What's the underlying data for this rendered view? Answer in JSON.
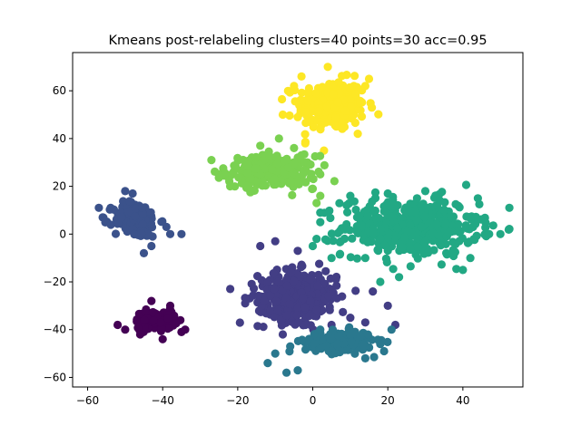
{
  "chart_data": {
    "type": "scatter",
    "title": "Kmeans post-relabeling clusters=40 points=30 acc=0.95",
    "xlabel": "",
    "ylabel": "",
    "xlim": [
      -64,
      56
    ],
    "ylim": [
      -64,
      76
    ],
    "xticks": [
      -60,
      -40,
      -20,
      0,
      20,
      40
    ],
    "yticks": [
      -60,
      -40,
      -20,
      0,
      20,
      40,
      60
    ],
    "grid": false,
    "colormap": "viridis",
    "marker_color_scale": "cluster label (viridis)",
    "series": [
      {
        "color": "#fde725",
        "center": [
          5,
          54
        ],
        "spread": [
          6,
          7
        ],
        "count": 260,
        "points": [
          [
            -4,
            49
          ],
          [
            -2,
            51
          ],
          [
            -5,
            62
          ],
          [
            14,
            62
          ],
          [
            15,
            65
          ],
          [
            3,
            35
          ],
          [
            -3,
            66
          ],
          [
            4,
            70
          ],
          [
            12,
            42
          ],
          [
            -8,
            50
          ],
          [
            -2,
            38
          ]
        ]
      },
      {
        "color": "#7ad151",
        "center": [
          -11,
          26
        ],
        "spread": [
          8,
          4.5
        ],
        "count": 240,
        "points": [
          [
            -27,
            31
          ],
          [
            -25,
            25
          ],
          [
            -22,
            20
          ],
          [
            2,
            25
          ],
          [
            0,
            19
          ],
          [
            1,
            13
          ],
          [
            -14,
            37
          ],
          [
            -9,
            40
          ],
          [
            -5,
            36
          ],
          [
            -3,
            33
          ],
          [
            2,
            16
          ]
        ]
      },
      {
        "color": "#22a884",
        "center": [
          26,
          3
        ],
        "spread": [
          12,
          8
        ],
        "count": 420,
        "points": [
          [
            0,
            -5
          ],
          [
            2,
            5
          ],
          [
            2,
            9
          ],
          [
            1,
            -2
          ],
          [
            5,
            -10
          ],
          [
            10,
            16
          ],
          [
            20,
            17
          ],
          [
            30,
            18
          ],
          [
            44,
            15
          ],
          [
            47,
            0
          ],
          [
            50,
            0
          ],
          [
            42,
            -10
          ],
          [
            40,
            -15
          ],
          [
            18,
            -20
          ],
          [
            23,
            -18
          ],
          [
            14,
            -10
          ]
        ]
      },
      {
        "color": "#3b528b",
        "center": [
          -47,
          6
        ],
        "spread": [
          4,
          5
        ],
        "count": 150,
        "points": [
          [
            -57,
            11
          ],
          [
            -56,
            7
          ],
          [
            -50,
            18
          ],
          [
            -48,
            17
          ],
          [
            -38,
            0
          ],
          [
            -43,
            -5
          ],
          [
            -45,
            -8
          ],
          [
            -35,
            0
          ],
          [
            -39,
            3
          ]
        ]
      },
      {
        "color": "#433e85",
        "center": [
          -4,
          -26
        ],
        "spread": [
          7,
          7
        ],
        "count": 320,
        "points": [
          [
            -22,
            -23
          ],
          [
            -14,
            -5
          ],
          [
            -10,
            -3
          ],
          [
            -4,
            -7
          ],
          [
            -18,
            -29
          ],
          [
            -13,
            -28
          ],
          [
            5,
            -38
          ],
          [
            10,
            -35
          ],
          [
            14,
            -37
          ],
          [
            20,
            -30
          ],
          [
            16,
            -24
          ],
          [
            22,
            -38
          ],
          [
            -8,
            -42
          ],
          [
            -2,
            -38
          ]
        ]
      },
      {
        "color": "#2a788e",
        "center": [
          7,
          -45
        ],
        "spread": [
          6,
          3
        ],
        "count": 170,
        "points": [
          [
            -12,
            -54
          ],
          [
            -7,
            -58
          ],
          [
            -4,
            -57
          ],
          [
            -10,
            -50
          ],
          [
            14,
            -52
          ],
          [
            18,
            -46
          ],
          [
            19,
            -49
          ],
          [
            21,
            -40
          ],
          [
            -6,
            -47
          ],
          [
            2,
            -40
          ]
        ]
      },
      {
        "color": "#440154",
        "center": [
          -42,
          -36
        ],
        "spread": [
          3.5,
          2.5
        ],
        "count": 130,
        "points": [
          [
            -52,
            -38
          ],
          [
            -50,
            -40
          ],
          [
            -35,
            -41
          ],
          [
            -34,
            -40
          ],
          [
            -43,
            -28
          ],
          [
            -40,
            -44
          ],
          [
            -46,
            -42
          ],
          [
            -38,
            -30
          ]
        ]
      }
    ]
  }
}
